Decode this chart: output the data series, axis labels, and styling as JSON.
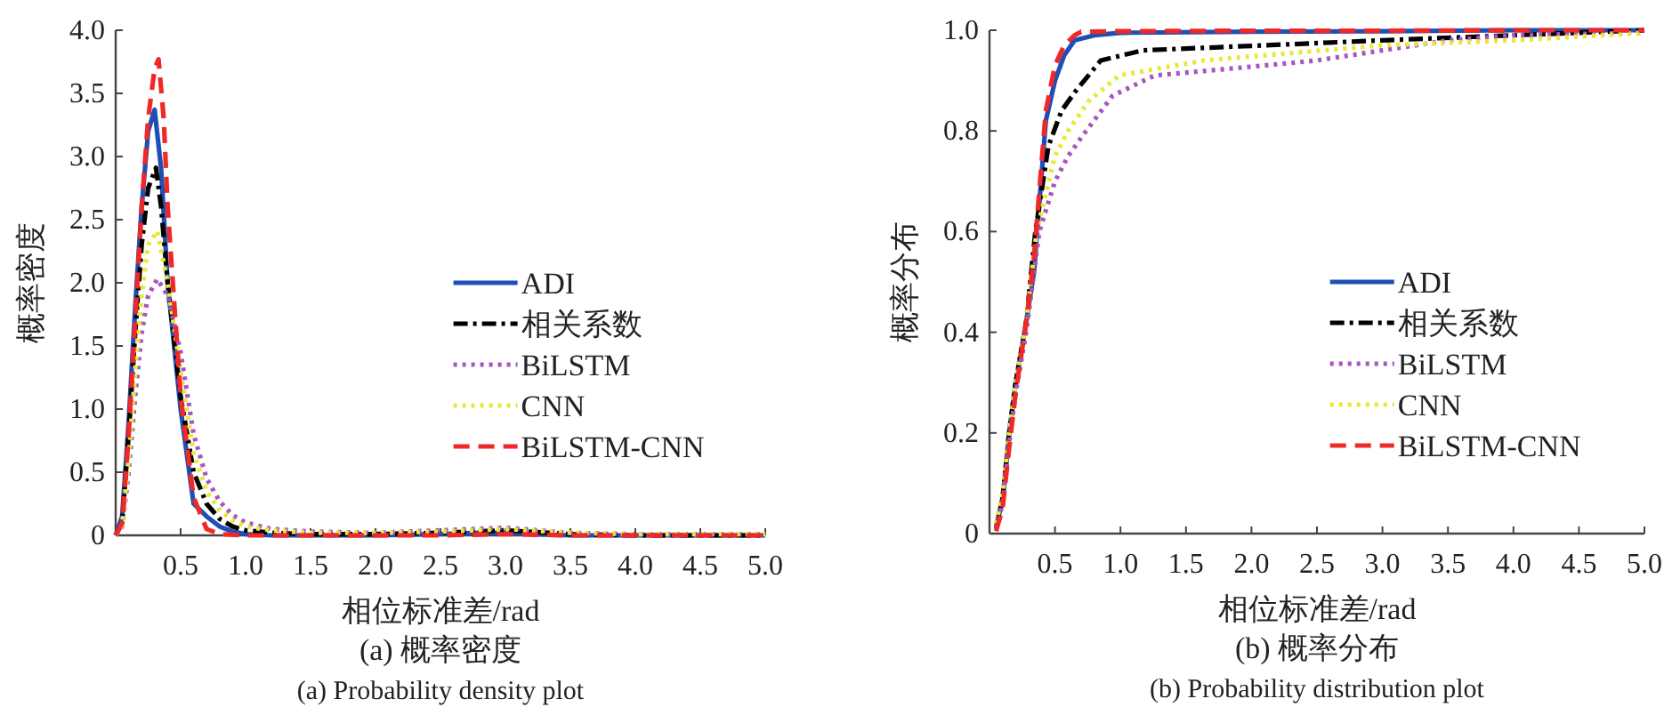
{
  "chart_data": [
    {
      "type": "line",
      "title": "(a) 概率密度",
      "subtitle": "(a) Probability density plot",
      "xlabel": "相位标准差/rad",
      "ylabel": "概率密度",
      "xlim": [
        0,
        5
      ],
      "ylim": [
        0,
        4
      ],
      "xticks": [
        0.5,
        {
          "value": 1,
          "label": "1.0"
        },
        1.5,
        {
          "value": 2,
          "label": "2.0"
        },
        2.5,
        {
          "value": 3,
          "label": "3.0"
        },
        3.5,
        {
          "value": 4,
          "label": "4.0"
        },
        4.5,
        {
          "value": 5,
          "label": "5.0"
        }
      ],
      "yticks": [
        0,
        0.5,
        {
          "value": 1,
          "label": "1.0"
        },
        1.5,
        {
          "value": 2,
          "label": "2.0"
        },
        2.5,
        {
          "value": 3,
          "label": "3.0"
        },
        3.5,
        {
          "value": 4,
          "label": "4.0"
        }
      ],
      "legend": "right",
      "grid": false,
      "series": [
        {
          "name": "ADI",
          "color": "#1f4fb4",
          "line_style": "solid",
          "x": [
            0,
            0.05,
            0.1,
            0.15,
            0.2,
            0.25,
            0.3,
            0.35,
            0.4,
            0.5,
            0.6,
            0.7,
            0.8,
            0.9,
            1,
            1.2,
            1.5,
            2,
            2.5,
            2.8,
            3,
            3.2,
            3.5,
            4,
            5
          ],
          "values": [
            0,
            0.15,
            0.9,
            1.8,
            2.6,
            3.2,
            3.37,
            2.9,
            2,
            1,
            0.25,
            0.15,
            0.07,
            0.03,
            0.01,
            0,
            0,
            0,
            0.01,
            0.02,
            0.02,
            0.01,
            0,
            0,
            0
          ]
        },
        {
          "name": "相关系数",
          "color": "#000000",
          "line_style": "dashdot",
          "x": [
            0,
            0.05,
            0.1,
            0.15,
            0.2,
            0.25,
            0.31,
            0.35,
            0.4,
            0.5,
            0.6,
            0.7,
            0.8,
            0.9,
            1,
            1.2,
            1.5,
            2,
            2.5,
            3,
            3.5,
            4,
            5
          ],
          "values": [
            0,
            0.1,
            0.8,
            1.6,
            2.3,
            2.75,
            2.91,
            2.6,
            2,
            1.1,
            0.5,
            0.25,
            0.13,
            0.07,
            0.04,
            0.02,
            0.01,
            0.01,
            0.02,
            0.04,
            0.01,
            0,
            0
          ]
        },
        {
          "name": "BiLSTM",
          "color": "#a855c0",
          "line_style": "dotted",
          "x": [
            0,
            0.05,
            0.1,
            0.15,
            0.2,
            0.25,
            0.32,
            0.4,
            0.5,
            0.6,
            0.7,
            0.8,
            0.9,
            1,
            1.2,
            1.5,
            2,
            2.5,
            3,
            3.5,
            4,
            5
          ],
          "values": [
            0,
            0.07,
            0.5,
            1.1,
            1.6,
            1.9,
            2.03,
            1.9,
            1.45,
            0.8,
            0.45,
            0.27,
            0.16,
            0.1,
            0.05,
            0.03,
            0.02,
            0.04,
            0.06,
            0.02,
            0.01,
            0.01
          ]
        },
        {
          "name": "CNN",
          "color": "#e8e83a",
          "line_style": "dotted",
          "x": [
            0,
            0.05,
            0.1,
            0.15,
            0.2,
            0.25,
            0.32,
            0.4,
            0.5,
            0.6,
            0.7,
            0.8,
            0.9,
            1,
            1.2,
            1.5,
            2,
            2.5,
            3,
            3.5,
            4,
            5
          ],
          "values": [
            0,
            0.08,
            0.6,
            1.3,
            1.9,
            2.3,
            2.41,
            2,
            1.3,
            0.65,
            0.35,
            0.2,
            0.12,
            0.07,
            0.04,
            0.02,
            0.02,
            0.03,
            0.05,
            0.02,
            0.01,
            0.01
          ]
        },
        {
          "name": "BiLSTM-CNN",
          "color": "#f02828",
          "line_style": "dashed",
          "x": [
            0,
            0.05,
            0.1,
            0.15,
            0.2,
            0.25,
            0.3,
            0.33,
            0.37,
            0.4,
            0.5,
            0.6,
            0.7,
            0.8,
            1,
            1.5,
            2,
            2.5,
            3,
            3.5,
            4,
            5
          ],
          "values": [
            0,
            0.1,
            0.8,
            1.7,
            2.6,
            3.3,
            3.7,
            3.77,
            3.3,
            2.6,
            1.1,
            0.3,
            0.05,
            0.01,
            0,
            0,
            0,
            0,
            0.01,
            0,
            0,
            0
          ]
        }
      ]
    },
    {
      "type": "line",
      "title": "(b) 概率分布",
      "subtitle": "(b) Probability distribution plot",
      "xlabel": "相位标准差/rad",
      "ylabel": "概率分布",
      "xlim": [
        0,
        5
      ],
      "ylim": [
        0,
        1
      ],
      "xticks": [
        0.5,
        {
          "value": 1,
          "label": "1.0"
        },
        1.5,
        {
          "value": 2,
          "label": "2.0"
        },
        2.5,
        {
          "value": 3,
          "label": "3.0"
        },
        3.5,
        {
          "value": 4,
          "label": "4.0"
        },
        4.5,
        {
          "value": 5,
          "label": "5.0"
        }
      ],
      "yticks": [
        0,
        0.2,
        0.4,
        0.6,
        0.8,
        {
          "value": 1,
          "label": "1.0"
        }
      ],
      "legend": "right",
      "grid": false,
      "series": [
        {
          "name": "ADI",
          "color": "#1f4fb4",
          "line_style": "solid",
          "x": [
            0.05,
            0.1,
            0.15,
            0.2,
            0.28,
            0.34,
            0.43,
            0.5,
            0.57,
            0.65,
            0.8,
            1,
            2,
            3,
            4,
            5
          ],
          "values": [
            0.01,
            0.07,
            0.2,
            0.3,
            0.42,
            0.52,
            0.82,
            0.9,
            0.95,
            0.98,
            0.99,
            0.995,
            0.997,
            0.998,
            1,
            1
          ]
        },
        {
          "name": "相关系数",
          "color": "#000000",
          "line_style": "dashdot",
          "x": [
            0.05,
            0.1,
            0.15,
            0.2,
            0.28,
            0.35,
            0.45,
            0.55,
            0.66,
            0.85,
            1.17,
            2.1,
            3,
            4,
            4.5,
            5
          ],
          "values": [
            0.01,
            0.07,
            0.2,
            0.3,
            0.42,
            0.6,
            0.77,
            0.84,
            0.88,
            0.94,
            0.96,
            0.97,
            0.98,
            0.99,
            0.995,
            1
          ]
        },
        {
          "name": "BiLSTM",
          "color": "#a855c0",
          "line_style": "dotted",
          "x": [
            0.05,
            0.1,
            0.15,
            0.2,
            0.28,
            0.38,
            0.5,
            0.6,
            0.71,
            0.94,
            1.26,
            2.1,
            2.5,
            3,
            3.5,
            4,
            5
          ],
          "values": [
            0.01,
            0.06,
            0.18,
            0.28,
            0.4,
            0.6,
            0.7,
            0.75,
            0.79,
            0.87,
            0.91,
            0.93,
            0.94,
            0.96,
            0.98,
            0.99,
            0.995
          ]
        },
        {
          "name": "CNN",
          "color": "#e8e83a",
          "line_style": "dotted",
          "x": [
            0.05,
            0.1,
            0.15,
            0.2,
            0.28,
            0.36,
            0.5,
            0.6,
            0.76,
            0.99,
            1.64,
            3,
            4,
            5
          ],
          "values": [
            0.02,
            0.08,
            0.2,
            0.3,
            0.42,
            0.6,
            0.75,
            0.8,
            0.86,
            0.91,
            0.94,
            0.97,
            0.98,
            0.995
          ]
        },
        {
          "name": "BiLSTM-CNN",
          "color": "#f02828",
          "line_style": "dashed",
          "x": [
            0.05,
            0.1,
            0.15,
            0.2,
            0.28,
            0.34,
            0.43,
            0.5,
            0.57,
            0.65,
            0.7,
            1,
            2,
            3,
            4,
            5
          ],
          "values": [
            0.005,
            0.05,
            0.17,
            0.28,
            0.42,
            0.55,
            0.84,
            0.93,
            0.97,
            0.99,
            0.997,
            0.998,
            0.999,
            0.999,
            1,
            1
          ]
        }
      ]
    }
  ]
}
